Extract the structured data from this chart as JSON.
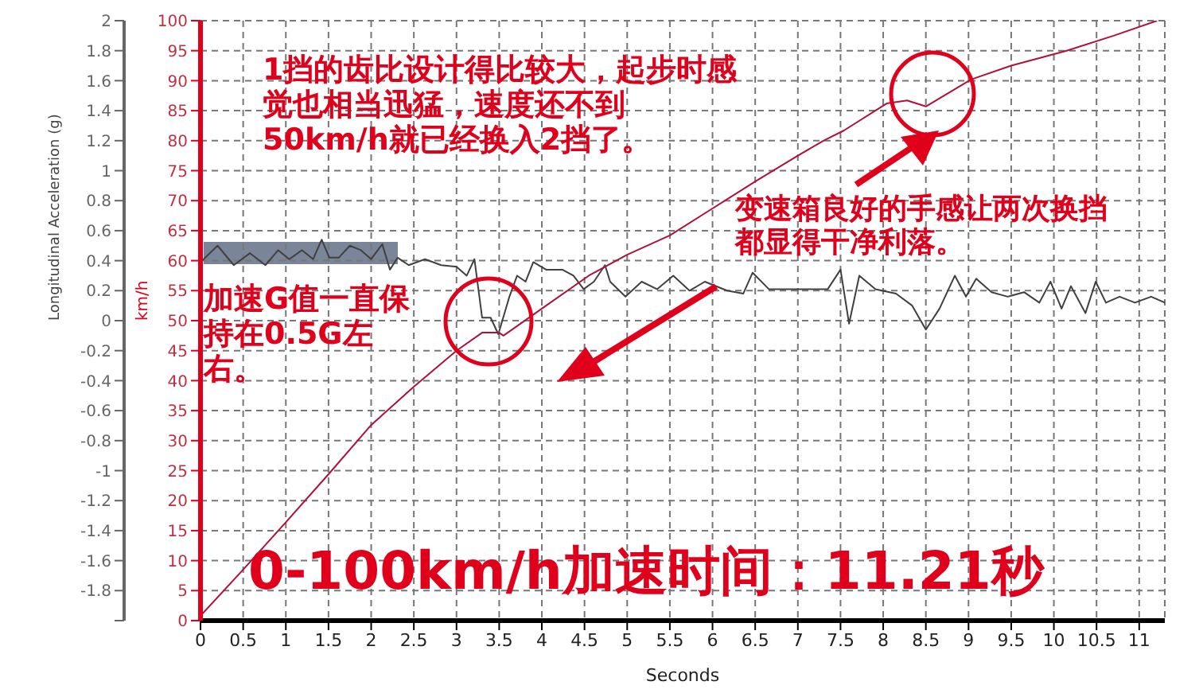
{
  "chart_data": {
    "type": "line",
    "xlabel": "Seconds",
    "ylabel": "Longitudinal Acceleration (g)",
    "y2label": "km/h",
    "xlim": [
      0,
      11.3
    ],
    "xticks": [
      0,
      0.5,
      1,
      1.5,
      2,
      2.5,
      3,
      3.5,
      4,
      4.5,
      5,
      5.5,
      6,
      6.5,
      7,
      7.5,
      8,
      8.5,
      9,
      9.5,
      10,
      10.5,
      11
    ],
    "ylim": [
      -2,
      2
    ],
    "yticks": [
      {
        "value": -2,
        "label": null
      },
      -1.8,
      -1.6,
      -1.4,
      -1.2,
      -1,
      -0.8,
      -0.6,
      -0.4,
      -0.2,
      0,
      0.2,
      0.4,
      0.6,
      0.8,
      1,
      1.2,
      1.4,
      1.6,
      1.8,
      2
    ],
    "y2lim": [
      0,
      100
    ],
    "y2ticks": [
      0,
      5,
      10,
      15,
      20,
      25,
      30,
      35,
      40,
      45,
      50,
      55,
      60,
      65,
      70,
      75,
      80,
      85,
      90,
      95,
      100
    ],
    "grid": true,
    "legend": false,
    "series": [
      {
        "color": "#404040",
        "x": [
          0,
          0.2,
          0.39,
          0.58,
          0.76,
          0.91,
          1.04,
          1.19,
          1.32,
          1.42,
          1.51,
          1.62,
          1.75,
          1.88,
          2.0,
          2.13,
          2.22,
          2.31,
          2.44,
          2.63,
          2.82,
          3.0,
          3.12,
          3.21,
          3.3,
          3.4,
          3.49,
          3.62,
          3.71,
          3.81,
          3.9,
          4.05,
          4.24,
          4.37,
          4.49,
          4.61,
          4.74,
          4.8,
          4.98,
          5.17,
          5.35,
          5.54,
          5.73,
          5.91,
          6.17,
          6.36,
          6.47,
          6.66,
          6.92,
          7.16,
          7.35,
          7.5,
          7.6,
          7.72,
          7.91,
          8.15,
          8.34,
          8.5,
          8.66,
          8.84,
          8.97,
          9.09,
          9.27,
          9.46,
          9.65,
          9.83,
          9.96,
          10.09,
          10.2,
          10.37,
          10.49,
          10.61,
          10.77,
          10.95,
          11.14,
          11.3
        ],
        "values": [
          0.39,
          0.5,
          0.37,
          0.45,
          0.37,
          0.47,
          0.41,
          0.47,
          0.41,
          0.54,
          0.42,
          0.42,
          0.5,
          0.47,
          0.41,
          0.51,
          0.34,
          0.42,
          0.37,
          0.41,
          0.37,
          0.36,
          0.3,
          0.41,
          0.02,
          0.02,
          -0.09,
          0.16,
          0.3,
          0.26,
          0.39,
          0.34,
          0.34,
          0.3,
          0.21,
          0.26,
          0.37,
          0.26,
          0.16,
          0.26,
          0.21,
          0.3,
          0.2,
          0.26,
          0.2,
          0.18,
          0.32,
          0.21,
          0.21,
          0.21,
          0.21,
          0.34,
          -0.02,
          0.3,
          0.21,
          0.18,
          0.1,
          -0.06,
          0.08,
          0.3,
          0.16,
          0.28,
          0.19,
          0.16,
          0.19,
          0.12,
          0.26,
          0.08,
          0.23,
          0.05,
          0.26,
          0.12,
          0.16,
          0.12,
          0.16,
          0.12
        ]
      },
      {
        "color": "#b0103a",
        "axis": "y2",
        "x": [
          0,
          0.5,
          1,
          1.5,
          2,
          2.5,
          3,
          3.3,
          3.5,
          3.55,
          4,
          4.55,
          5,
          5.5,
          6,
          6.5,
          7,
          7.3,
          7.54,
          8.04,
          8.28,
          8.5,
          9.03,
          9.5,
          10.15,
          10.7,
          11.21
        ],
        "values": [
          0.8,
          8.5,
          16.4,
          24.4,
          32.6,
          39,
          45,
          48,
          48,
          47.5,
          52,
          57.5,
          61,
          64.2,
          68.7,
          73.2,
          77.5,
          80,
          81.7,
          86.2,
          86.7,
          85.7,
          90.2,
          92.5,
          95,
          97.5,
          100
        ]
      }
    ],
    "annotations": [
      "1挡的齿比设计得比较大，起步时感觉也相当迅猛，速度还不到50km/h就已经换入2挡了。",
      "变速箱良好的手感让两次换挡都显得干净利落。",
      "加速G值一直保持在0.5G左右。",
      "0-100km/h加速时间：11.21秒"
    ]
  }
}
